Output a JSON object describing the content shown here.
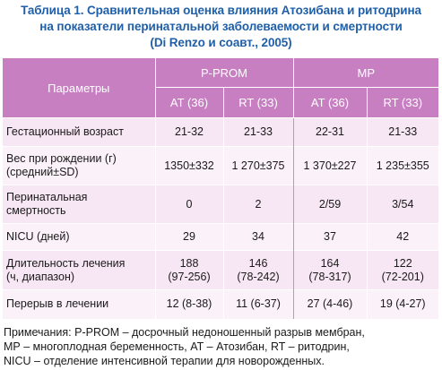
{
  "caption": [
    "Таблица 1. Сравнительная оценка влияния Атозибана и ритодрина",
    "на показатели перинатальной заболеваемости и смертности",
    "(Di Renzo и соавт., 2005)"
  ],
  "header": {
    "params": "Параметры",
    "group1": "P-PROM",
    "group2": "МР",
    "sub": [
      "AT (36)",
      "RT (33)",
      "AT (36)",
      "RT (33)"
    ]
  },
  "rows": [
    {
      "label": [
        "Гестационный возраст"
      ],
      "cells": [
        [
          "21-32"
        ],
        [
          "21-33"
        ],
        [
          "22-31"
        ],
        [
          "21-33"
        ]
      ]
    },
    {
      "label": [
        "Вес при рождении (г)",
        "(средний±SD)"
      ],
      "cells": [
        [
          "1350±332"
        ],
        [
          "1 270±375"
        ],
        [
          "1 370±227"
        ],
        [
          "1 235±355"
        ]
      ]
    },
    {
      "label": [
        "Перинатальная",
        "смертность"
      ],
      "cells": [
        [
          "0"
        ],
        [
          "2"
        ],
        [
          "2/59"
        ],
        [
          "3/54"
        ]
      ]
    },
    {
      "label": [
        "NICU (дней)"
      ],
      "cells": [
        [
          "29"
        ],
        [
          "34"
        ],
        [
          "37"
        ],
        [
          "42"
        ]
      ]
    },
    {
      "label": [
        "Длительность лечения",
        "(ч, диапазон)"
      ],
      "cells": [
        [
          "188",
          "(97-256)"
        ],
        [
          "146",
          "(78-242)"
        ],
        [
          "164",
          "(78-317)"
        ],
        [
          "122",
          "(72-201)"
        ]
      ]
    },
    {
      "label": [
        "Перерыв в лечении"
      ],
      "cells": [
        [
          "12 (8-38)"
        ],
        [
          "11 (6-37)"
        ],
        [
          "27 (4-46)"
        ],
        [
          "19 (4-27)"
        ]
      ]
    }
  ],
  "notes": [
    "Примечания: P-PROM – досрочный недоношенный разрыв мембран,",
    "МР – многоплодная беременность, АТ – Атозибан, RT – ритодрин,",
    "NICU – отделение интенсивной терапии для новорожденных."
  ],
  "colors": {
    "caption": "#1f5fa8",
    "header_bg": "#c77fc2",
    "row_odd": "#f7e6f3",
    "row_even": "#fbf1f8"
  }
}
